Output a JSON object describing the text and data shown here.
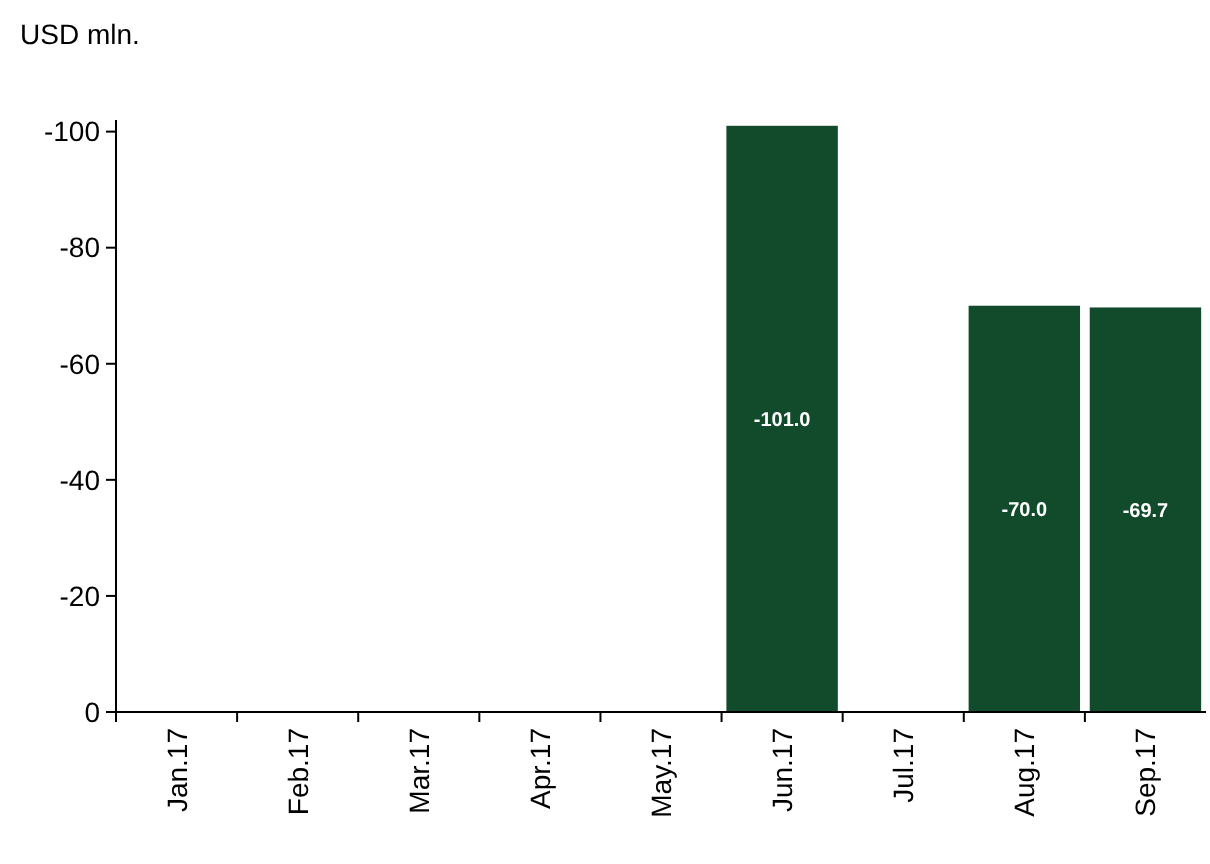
{
  "chart_data": {
    "type": "bar",
    "ylabel": "USD mln.",
    "categories": [
      "Jan.17",
      "Feb.17",
      "Mar.17",
      "Apr.17",
      "May.17",
      "Jun.17",
      "Jul.17",
      "Aug.17",
      "Sep.17"
    ],
    "values": [
      null,
      null,
      null,
      null,
      null,
      -101.0,
      null,
      -70.0,
      -69.7
    ],
    "value_labels": [
      null,
      null,
      null,
      null,
      null,
      "-101.0",
      null,
      "-70.0",
      "-69.7"
    ],
    "color": "#114b2b",
    "ylim": [
      0,
      -102
    ],
    "yticks": [
      0,
      -20,
      -40,
      -60,
      -80,
      -100
    ],
    "grid": false
  }
}
